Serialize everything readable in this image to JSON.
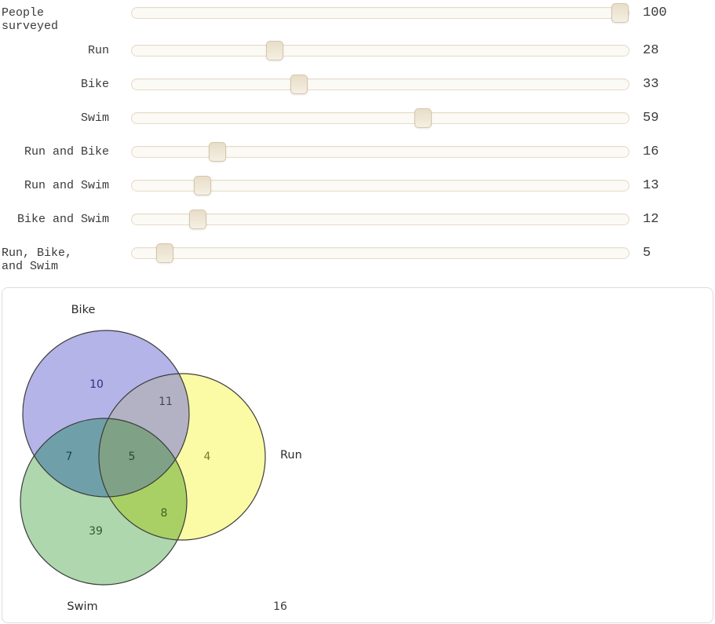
{
  "sliders": {
    "min": 0,
    "max": 100,
    "items": [
      {
        "label": "People\nsurveyed",
        "value": 100
      },
      {
        "label": "Run",
        "value": 28
      },
      {
        "label": "Bike",
        "value": 33
      },
      {
        "label": "Swim",
        "value": 59
      },
      {
        "label": "Run and Bike",
        "value": 16
      },
      {
        "label": "Run and Swim",
        "value": 13
      },
      {
        "label": "Bike and Swim",
        "value": 12
      },
      {
        "label": "Run, Bike,\nand Swim",
        "value": 5
      }
    ]
  },
  "chart_data": {
    "type": "venn",
    "sets": {
      "bike": "Bike",
      "run": "Run",
      "swim": "Swim"
    },
    "regions": {
      "bike_only": 10,
      "bike_run": 11,
      "run_only": 4,
      "bike_swim": 7,
      "center": 5,
      "run_swim": 8,
      "swim_only": 39,
      "outside": 16
    },
    "colors": {
      "bike_fill": "#b4b4e9",
      "run_fill": "#fbfba6",
      "swim_fill": "#aed7ae",
      "bike_run_fill": "#b2b2c4",
      "bike_swim_fill": "#6fa0a9",
      "run_swim_fill": "#a9d064",
      "center_fill": "#7fa287",
      "outline": "#3c3c3c",
      "setname_color": "#2b2b2b",
      "n_bike": "#31317d",
      "n_run": "#7c7c1e",
      "n_swim": "#2d5c2d",
      "n_bike_run": "#46465a",
      "n_bike_swim": "#1d434d",
      "n_run_swim": "#3f6320",
      "n_center": "#2a4a2f",
      "n_outside": "#3c3c3c"
    }
  }
}
